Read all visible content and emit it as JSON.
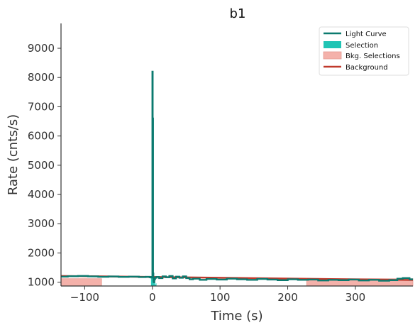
{
  "chart_data": {
    "type": "line",
    "title": "b1",
    "xlabel": "Time (s)",
    "ylabel": "Rate (cnts/s)",
    "xlim": [
      -135,
      385
    ],
    "ylim": [
      870,
      9850
    ],
    "xticks": [
      {
        "value": -100,
        "label": "−100"
      },
      {
        "value": 0,
        "label": "0"
      },
      {
        "value": 100,
        "label": "100"
      },
      {
        "value": 200,
        "label": "200"
      },
      {
        "value": 300,
        "label": "300"
      }
    ],
    "yticks": [
      {
        "value": 1000,
        "label": "1000"
      },
      {
        "value": 2000,
        "label": "2000"
      },
      {
        "value": 3000,
        "label": "3000"
      },
      {
        "value": 4000,
        "label": "4000"
      },
      {
        "value": 5000,
        "label": "5000"
      },
      {
        "value": 6000,
        "label": "6000"
      },
      {
        "value": 7000,
        "label": "7000"
      },
      {
        "value": 8000,
        "label": "8000"
      },
      {
        "value": 9000,
        "label": "9000"
      }
    ],
    "grid": false,
    "legend_position": "top-right",
    "colors": {
      "light_curve": "#0b7a6f",
      "selection": "#20c4b4",
      "bkg_selection": "#f4b1aa",
      "background": "#c0392b",
      "axis": "#333333"
    },
    "series": [
      {
        "name": "Light Curve",
        "kind": "step",
        "x": [
          -135,
          -125,
          -110,
          -95,
          -80,
          -65,
          -50,
          -35,
          -20,
          -10,
          -4,
          -2,
          -1,
          0,
          0.5,
          1,
          1.5,
          2,
          3,
          4,
          6,
          10,
          15,
          20,
          25,
          30,
          35,
          40,
          45,
          50,
          55,
          60,
          70,
          80,
          95,
          110,
          125,
          140,
          155,
          170,
          185,
          200,
          215,
          230,
          245,
          260,
          275,
          290,
          305,
          320,
          335,
          350,
          362,
          370,
          380,
          385
        ],
        "y": [
          1190,
          1205,
          1215,
          1200,
          1185,
          1195,
          1180,
          1190,
          1175,
          1185,
          1170,
          1160,
          1180,
          8200,
          6600,
          1300,
          1050,
          1000,
          1100,
          1150,
          1180,
          1140,
          1200,
          1170,
          1210,
          1130,
          1190,
          1150,
          1200,
          1140,
          1100,
          1120,
          1080,
          1110,
          1090,
          1120,
          1100,
          1080,
          1110,
          1090,
          1070,
          1100,
          1080,
          1090,
          1060,
          1080,
          1070,
          1090,
          1060,
          1080,
          1050,
          1070,
          1120,
          1140,
          1100,
          1100
        ]
      },
      {
        "name": "Selection",
        "kind": "fill",
        "x": [
          -2,
          -1,
          0,
          1,
          2,
          3,
          4,
          5
        ],
        "y": [
          1160,
          1180,
          8200,
          6600,
          1050,
          1000,
          920,
          960
        ]
      },
      {
        "name": "Bkg. Selections",
        "kind": "band",
        "ranges": [
          [
            -135,
            -75
          ],
          [
            228,
            385
          ]
        ]
      },
      {
        "name": "Background",
        "kind": "line",
        "x": [
          -135,
          385
        ],
        "y": [
          1215,
          1075
        ]
      }
    ]
  }
}
